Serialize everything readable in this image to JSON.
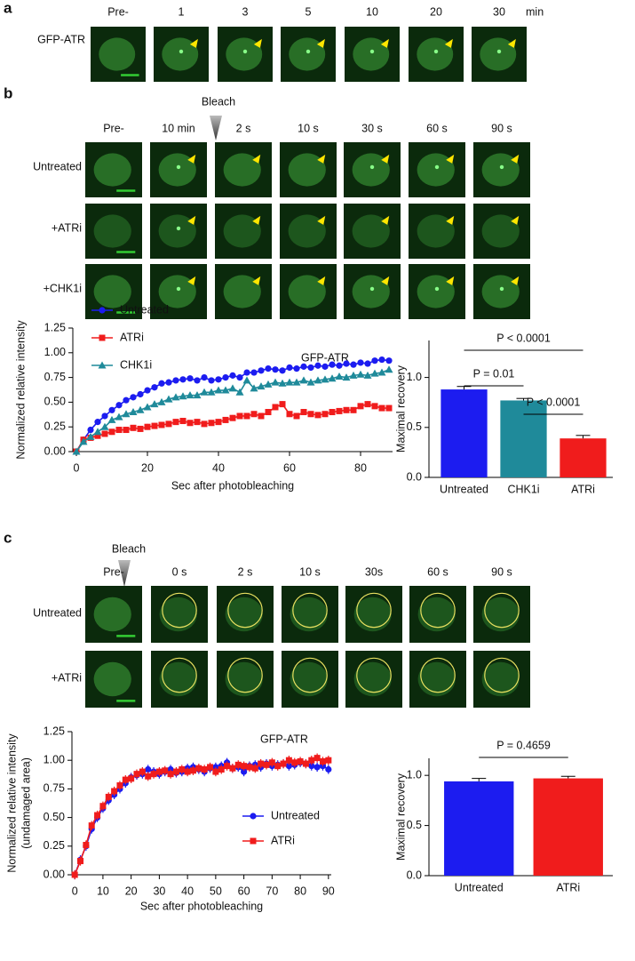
{
  "panel_a": {
    "letter": "a",
    "row_label": "GFP-ATR",
    "time_labels": [
      "Pre-",
      "1",
      "3",
      "5",
      "10",
      "20",
      "30"
    ],
    "unit": "min"
  },
  "panel_b": {
    "letter": "b",
    "bleach": "Bleach",
    "time_labels": [
      "Pre-",
      "10 min",
      "2 s",
      "10 s",
      "30 s",
      "60 s",
      "90 s"
    ],
    "row_labels": [
      "Untreated",
      "+ATRi",
      "+CHK1i"
    ]
  },
  "panel_c": {
    "letter": "c",
    "bleach": "Bleach",
    "time_labels": [
      "Pre-",
      "0 s",
      "2 s",
      "10 s",
      "30s",
      "60 s",
      "90 s"
    ],
    "row_labels": [
      "Untreated",
      "+ATRi"
    ]
  },
  "chart_data": [
    {
      "type": "line",
      "title": "GFP-ATR",
      "x_label": "Sec after photobleaching",
      "y_label": [
        "Normalized relative intensity"
      ],
      "x": [
        0,
        2,
        4,
        6,
        8,
        10,
        12,
        14,
        16,
        18,
        20,
        22,
        24,
        26,
        28,
        30,
        32,
        34,
        36,
        38,
        40,
        42,
        44,
        46,
        48,
        50,
        52,
        54,
        56,
        58,
        60,
        62,
        64,
        66,
        68,
        70,
        72,
        74,
        76,
        78,
        80,
        82,
        84,
        86,
        88
      ],
      "series": [
        {
          "name": "Untreated",
          "color": "#1c1cf0",
          "marker": "circle",
          "error": 0.03,
          "values": [
            0,
            0.12,
            0.22,
            0.3,
            0.36,
            0.42,
            0.47,
            0.52,
            0.55,
            0.58,
            0.62,
            0.65,
            0.69,
            0.7,
            0.72,
            0.73,
            0.74,
            0.72,
            0.75,
            0.72,
            0.73,
            0.75,
            0.77,
            0.75,
            0.8,
            0.8,
            0.82,
            0.84,
            0.83,
            0.82,
            0.85,
            0.84,
            0.86,
            0.85,
            0.87,
            0.86,
            0.88,
            0.87,
            0.89,
            0.88,
            0.9,
            0.89,
            0.92,
            0.93,
            0.92
          ]
        },
        {
          "name": "ATRi",
          "color": "#f01c1c",
          "marker": "square",
          "error": 0.03,
          "values": [
            0,
            0.12,
            0.14,
            0.16,
            0.18,
            0.2,
            0.22,
            0.22,
            0.24,
            0.23,
            0.25,
            0.26,
            0.27,
            0.28,
            0.3,
            0.31,
            0.29,
            0.3,
            0.28,
            0.29,
            0.3,
            0.32,
            0.34,
            0.36,
            0.36,
            0.38,
            0.36,
            0.4,
            0.45,
            0.48,
            0.38,
            0.36,
            0.4,
            0.38,
            0.37,
            0.38,
            0.4,
            0.41,
            0.42,
            0.42,
            0.46,
            0.48,
            0.46,
            0.44,
            0.44
          ]
        },
        {
          "name": "CHK1i",
          "color": "#1f8a9a",
          "marker": "triangle",
          "error": 0.03,
          "values": [
            0,
            0.1,
            0.15,
            0.2,
            0.25,
            0.32,
            0.35,
            0.38,
            0.4,
            0.42,
            0.45,
            0.48,
            0.5,
            0.53,
            0.55,
            0.56,
            0.57,
            0.57,
            0.6,
            0.6,
            0.62,
            0.62,
            0.64,
            0.6,
            0.72,
            0.64,
            0.66,
            0.68,
            0.7,
            0.69,
            0.7,
            0.7,
            0.72,
            0.7,
            0.72,
            0.73,
            0.74,
            0.76,
            0.75,
            0.77,
            0.78,
            0.77,
            0.79,
            0.8,
            0.83
          ]
        }
      ],
      "xlim": [
        -1,
        89
      ],
      "xticks": [
        0,
        20,
        40,
        60,
        80
      ],
      "ylim": [
        0,
        1.25
      ],
      "yticks": [
        {
          "value": 0,
          "label": "0.00"
        },
        {
          "value": 0.25,
          "label": "0.25"
        },
        {
          "value": 0.5,
          "label": "0.50"
        },
        {
          "value": 0.75,
          "label": "0.75"
        },
        {
          "value": 1,
          "label": "1.00"
        },
        {
          "value": 1.25,
          "label": "1.25"
        }
      ]
    },
    {
      "type": "bar",
      "y_label": "Maximal recovery",
      "categories": [
        "Untreated",
        "CHK1i",
        "ATRi"
      ],
      "values": [
        0.88,
        0.77,
        0.39
      ],
      "errors": [
        0.03,
        0.02,
        0.03
      ],
      "colors": [
        "#1c1cf0",
        "#1f8a9a",
        "#f01c1c"
      ],
      "ylim": [
        0,
        1.37
      ],
      "yticks": [
        {
          "value": 0,
          "label": "0.0"
        },
        {
          "value": 0.5,
          "label": "0.5"
        },
        {
          "value": 1,
          "label": "1.0"
        }
      ],
      "comparisons": [
        {
          "label": "P < 0.0001"
        },
        {
          "label": "P = 0.01"
        },
        {
          "label": "P < 0.0001"
        }
      ]
    },
    {
      "type": "line",
      "title": "GFP-ATR",
      "x_label": "Sec after photobleaching",
      "y_label": [
        "Normalized relative intensity",
        "(undamaged area)"
      ],
      "x": [
        0,
        2,
        4,
        6,
        8,
        10,
        12,
        14,
        16,
        18,
        20,
        22,
        24,
        26,
        28,
        30,
        32,
        34,
        36,
        38,
        40,
        42,
        44,
        46,
        48,
        50,
        52,
        54,
        56,
        58,
        60,
        62,
        64,
        66,
        68,
        70,
        72,
        74,
        76,
        78,
        80,
        82,
        84,
        86,
        88,
        90
      ],
      "series": [
        {
          "name": "Untreated",
          "color": "#1c1cf0",
          "marker": "circle",
          "error": 0.04,
          "values": [
            0,
            0.13,
            0.25,
            0.4,
            0.5,
            0.58,
            0.65,
            0.7,
            0.75,
            0.8,
            0.85,
            0.87,
            0.88,
            0.92,
            0.9,
            0.88,
            0.9,
            0.92,
            0.89,
            0.9,
            0.93,
            0.94,
            0.92,
            0.9,
            0.93,
            0.94,
            0.95,
            0.98,
            0.93,
            0.94,
            0.9,
            0.95,
            0.96,
            0.94,
            0.97,
            0.95,
            0.96,
            0.97,
            0.95,
            0.96,
            0.98,
            0.97,
            0.95,
            0.94,
            0.95,
            0.92
          ]
        },
        {
          "name": "ATRi",
          "color": "#f01c1c",
          "marker": "square",
          "error": 0.04,
          "values": [
            0,
            0.12,
            0.26,
            0.43,
            0.52,
            0.6,
            0.68,
            0.73,
            0.78,
            0.83,
            0.84,
            0.88,
            0.9,
            0.86,
            0.88,
            0.9,
            0.91,
            0.88,
            0.9,
            0.92,
            0.9,
            0.91,
            0.93,
            0.92,
            0.94,
            0.9,
            0.92,
            0.95,
            0.93,
            0.96,
            0.95,
            0.94,
            0.93,
            0.97,
            0.96,
            0.98,
            0.95,
            0.97,
            1.0,
            0.98,
            0.99,
            0.97,
            1.0,
            1.02,
            0.99,
            1.0
          ]
        }
      ],
      "xlim": [
        -1,
        91
      ],
      "xticks": [
        0,
        10,
        20,
        30,
        40,
        50,
        60,
        70,
        80,
        90
      ],
      "ylim": [
        0,
        1.25
      ],
      "yticks": [
        {
          "value": 0,
          "label": "0.00"
        },
        {
          "value": 0.25,
          "label": "0.25"
        },
        {
          "value": 0.5,
          "label": "0.50"
        },
        {
          "value": 0.75,
          "label": "0.75"
        },
        {
          "value": 1,
          "label": "1.00"
        },
        {
          "value": 1.25,
          "label": "1.25"
        }
      ]
    },
    {
      "type": "bar",
      "y_label": "Maximal recovery",
      "categories": [
        "Untreated",
        "ATRi"
      ],
      "values": [
        0.94,
        0.97
      ],
      "errors": [
        0.03,
        0.02
      ],
      "colors": [
        "#1c1cf0",
        "#f01c1c"
      ],
      "ylim": [
        0,
        1.17
      ],
      "yticks": [
        {
          "value": 0,
          "label": "0.0"
        },
        {
          "value": 0.5,
          "label": "0.5"
        },
        {
          "value": 1,
          "label": "1.0"
        }
      ],
      "comparisons": [
        {
          "label": "P = 0.4659"
        }
      ]
    }
  ]
}
